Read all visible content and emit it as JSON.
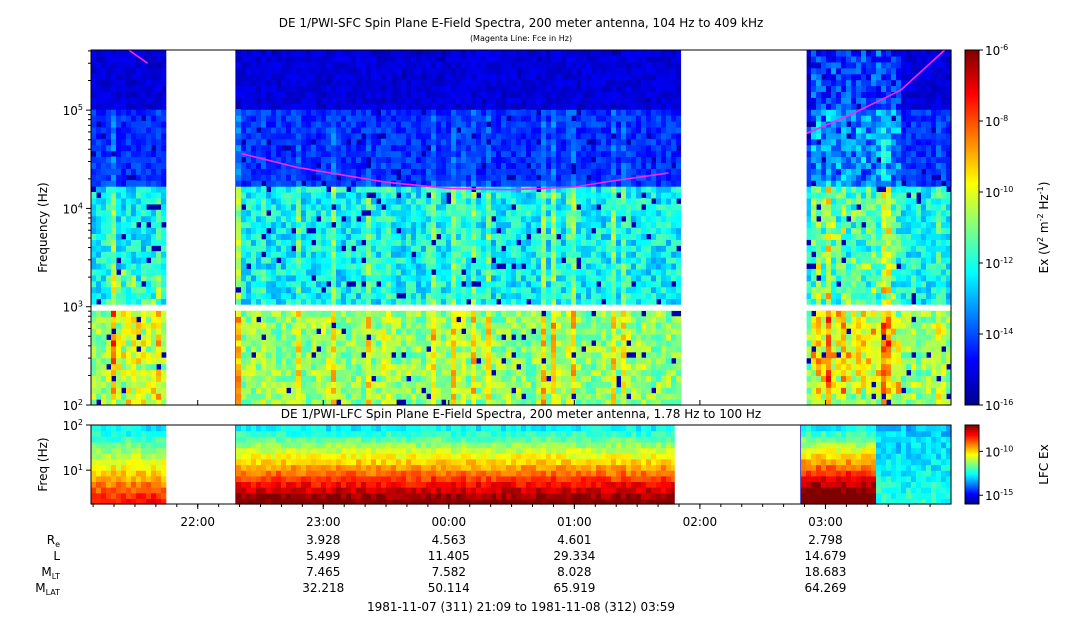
{
  "chart_data": [
    {
      "type": "heatmap",
      "title": "DE 1/PWI-SFC  Spin Plane E-Field Spectra, 200 meter antenna, 104 Hz to 409 kHz",
      "subtitle": "(Magenta Line: Fce in Hz)",
      "ylabel": "Frequency (Hz)",
      "yscale": "log",
      "ylim": [
        100,
        409000
      ],
      "yticks": [
        {
          "v": 100,
          "base": "10",
          "exp": "2"
        },
        {
          "v": 1000,
          "base": "10",
          "exp": "3"
        },
        {
          "v": 10000,
          "base": "10",
          "exp": "4"
        },
        {
          "v": 100000,
          "base": "10",
          "exp": "5"
        }
      ],
      "colorbar": {
        "label_parts": [
          "Ex (V",
          "2",
          " m",
          "-2",
          " Hz",
          "-1",
          ")"
        ],
        "scale": "log",
        "range": [
          1e-16,
          1e-06
        ],
        "ticks": [
          {
            "v": -6,
            "base": "10",
            "exp": "-6"
          },
          {
            "v": -8,
            "base": "10",
            "exp": "-8"
          },
          {
            "v": -10,
            "base": "10",
            "exp": "-10"
          },
          {
            "v": -12,
            "base": "10",
            "exp": "-12"
          },
          {
            "v": -14,
            "base": "10",
            "exp": "-14"
          },
          {
            "v": -16,
            "base": "10",
            "exp": "-16"
          }
        ]
      },
      "data_gaps_hours": [
        [
          21.75,
          22.3
        ],
        [
          25.85,
          26.85
        ]
      ],
      "fce_line_segments": [
        [
          [
            21.45,
            409000
          ],
          [
            21.6,
            300000
          ]
        ],
        [
          [
            22.35,
            36000
          ],
          [
            22.8,
            26000
          ],
          [
            23.5,
            18500
          ],
          [
            24.0,
            16000
          ],
          [
            24.5,
            15500
          ],
          [
            25.0,
            16500
          ],
          [
            25.3,
            19000
          ],
          [
            25.75,
            23000
          ]
        ],
        [
          [
            26.85,
            58000
          ],
          [
            27.2,
            90000
          ],
          [
            27.6,
            160000
          ],
          [
            27.95,
            409000
          ]
        ]
      ]
    },
    {
      "type": "heatmap",
      "title": "DE 1/PWI-LFC  Spin Plane E-Field Spectra, 200 meter antenna, 1.78 Hz to 100 Hz",
      "ylabel": "Freq (Hz)",
      "yscale": "log",
      "ylim": [
        1.78,
        100
      ],
      "yticks": [
        {
          "v": 10,
          "base": "10",
          "exp": "1"
        },
        {
          "v": 100,
          "base": "10",
          "exp": "2"
        }
      ],
      "colorbar": {
        "label": "LFC Ex",
        "scale": "log",
        "range": [
          1e-16,
          1e-07
        ],
        "ticks": [
          {
            "v": -10,
            "base": "10",
            "exp": "-10"
          },
          {
            "v": -15,
            "base": "10",
            "exp": "-15"
          }
        ]
      },
      "data_gaps_hours": [
        [
          21.75,
          22.3
        ],
        [
          25.8,
          26.8
        ]
      ]
    }
  ],
  "xaxis": {
    "start_hour": 21.15,
    "end hour": 28.0,
    "tick_labels": [
      {
        "h": 22,
        "label": "22:00"
      },
      {
        "h": 23,
        "label": "23:00"
      },
      {
        "h": 24,
        "label": "00:00"
      },
      {
        "h": 25,
        "label": "01:00"
      },
      {
        "h": 26,
        "label": "02:00"
      },
      {
        "h": 27,
        "label": "03:00"
      }
    ]
  },
  "ephemeris": [
    {
      "name": "R",
      "sub": "e",
      "values": [
        {
          "h": 23,
          "v": "3.928"
        },
        {
          "h": 24,
          "v": "4.563"
        },
        {
          "h": 25,
          "v": "4.601"
        },
        {
          "h": 27,
          "v": "2.798"
        }
      ]
    },
    {
      "name": "L",
      "sub": "",
      "values": [
        {
          "h": 23,
          "v": "5.499"
        },
        {
          "h": 24,
          "v": "11.405"
        },
        {
          "h": 25,
          "v": "29.334"
        },
        {
          "h": 27,
          "v": "14.679"
        }
      ]
    },
    {
      "name": "M",
      "sub": "LT",
      "values": [
        {
          "h": 23,
          "v": "7.465"
        },
        {
          "h": 24,
          "v": "7.582"
        },
        {
          "h": 25,
          "v": "8.028"
        },
        {
          "h": 27,
          "v": "18.683"
        }
      ]
    },
    {
      "name": "M",
      "sub": "LAT",
      "values": [
        {
          "h": 23,
          "v": "32.218"
        },
        {
          "h": 24,
          "v": "50.114"
        },
        {
          "h": 25,
          "v": "65.919"
        },
        {
          "h": 27,
          "v": "64.269"
        }
      ]
    }
  ],
  "time_range": "1981-11-07 (311) 21:09 to 1981-11-08 (312) 03:59",
  "colors": {
    "fce_line": "#ff22ff",
    "colormap": [
      "#00008f",
      "#0000ff",
      "#0080ff",
      "#00ffff",
      "#80ff80",
      "#ffff00",
      "#ff8000",
      "#ff0000",
      "#800000"
    ]
  }
}
